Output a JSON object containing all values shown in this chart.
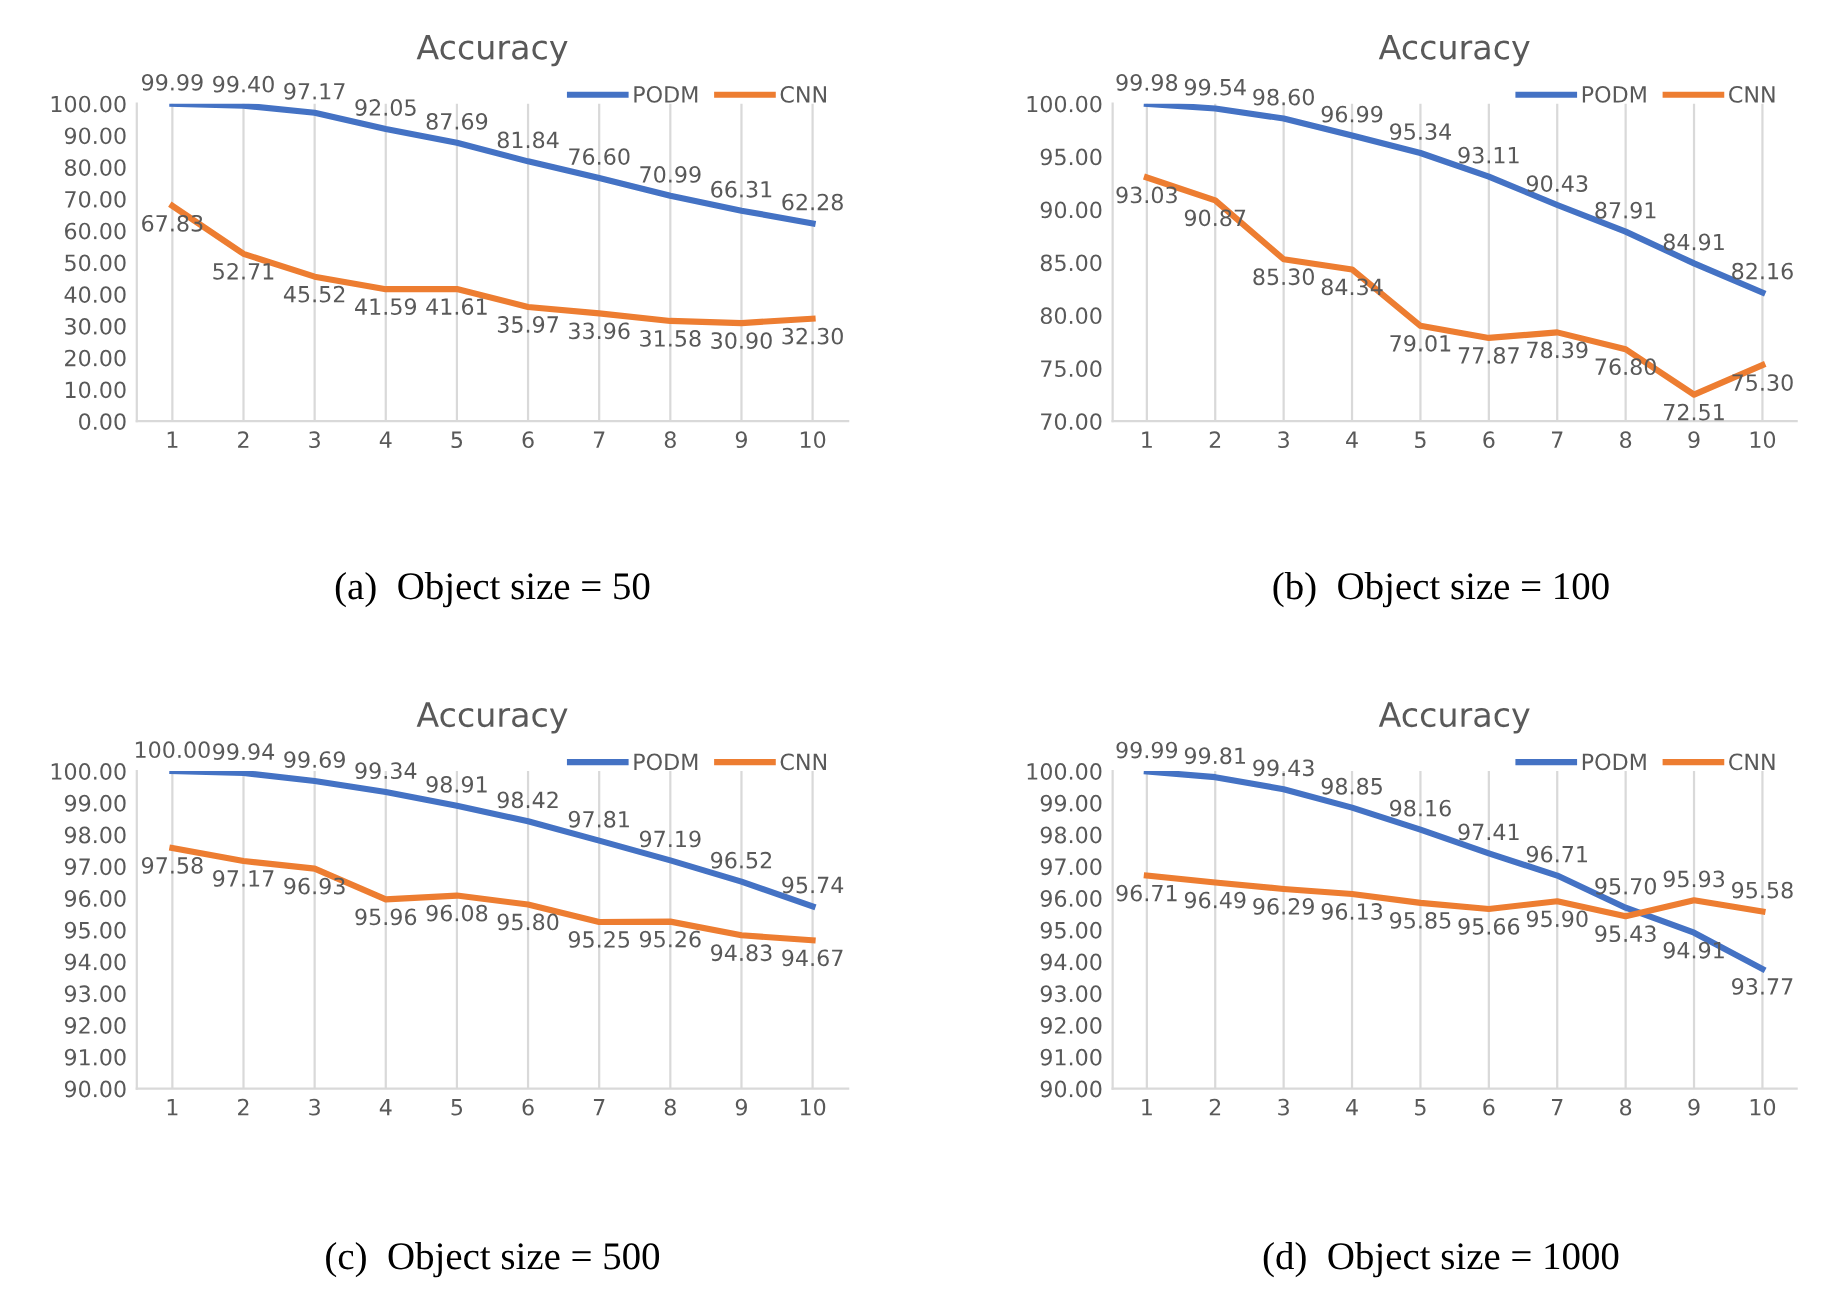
{
  "chart_data": [
    {
      "type": "line",
      "title": "Accuracy",
      "categories": [
        "1",
        "2",
        "3",
        "4",
        "5",
        "6",
        "7",
        "8",
        "9",
        "10"
      ],
      "ylim": [
        0,
        100
      ],
      "yticks": [
        {
          "value": 0,
          "label": "0.00"
        },
        {
          "value": 10,
          "label": "10.00"
        },
        {
          "value": 20,
          "label": "20.00"
        },
        {
          "value": 30,
          "label": "30.00"
        },
        {
          "value": 40,
          "label": "40.00"
        },
        {
          "value": 50,
          "label": "50.00"
        },
        {
          "value": 60,
          "label": "60.00"
        },
        {
          "value": 70,
          "label": "70.00"
        },
        {
          "value": 80,
          "label": "80.00"
        },
        {
          "value": 90,
          "label": "90.00"
        },
        {
          "value": 100,
          "label": "100.00"
        }
      ],
      "series": [
        {
          "name": "PODM",
          "color": "#4472c4",
          "values": [
            99.99,
            99.4,
            97.17,
            92.05,
            87.69,
            81.84,
            76.6,
            70.99,
            66.31,
            62.28
          ],
          "value_labels": [
            "99.99",
            "99.40",
            "97.17",
            "92.05",
            "87.69",
            "81.84",
            "76.60",
            "70.99",
            "66.31",
            "62.28"
          ]
        },
        {
          "name": "CNN",
          "color": "#ed7d31",
          "values": [
            67.83,
            52.71,
            45.52,
            41.59,
            41.61,
            35.97,
            33.96,
            31.58,
            30.9,
            32.3
          ],
          "value_labels": [
            "67.83",
            "52.71",
            "45.52",
            "41.59",
            "41.61",
            "35.97",
            "33.96",
            "31.58",
            "30.90",
            "32.30"
          ]
        }
      ],
      "grid": "x",
      "legend": "top right",
      "marker": "none",
      "line_style": "solid",
      "annotations": [
        "(a)  Object size = 50"
      ]
    },
    {
      "type": "line",
      "title": "Accuracy",
      "categories": [
        "1",
        "2",
        "3",
        "4",
        "5",
        "6",
        "7",
        "8",
        "9",
        "10"
      ],
      "ylim": [
        70,
        100
      ],
      "yticks": [
        {
          "value": 70,
          "label": "70.00"
        },
        {
          "value": 75,
          "label": "75.00"
        },
        {
          "value": 80,
          "label": "80.00"
        },
        {
          "value": 85,
          "label": "85.00"
        },
        {
          "value": 90,
          "label": "90.00"
        },
        {
          "value": 95,
          "label": "95.00"
        },
        {
          "value": 100,
          "label": "100.00"
        }
      ],
      "series": [
        {
          "name": "PODM",
          "color": "#4472c4",
          "values": [
            99.98,
            99.54,
            98.6,
            96.99,
            95.34,
            93.11,
            90.43,
            87.91,
            84.91,
            82.16
          ],
          "value_labels": [
            "99.98",
            "99.54",
            "98.60",
            "96.99",
            "95.34",
            "93.11",
            "90.43",
            "87.91",
            "84.91",
            "82.16"
          ]
        },
        {
          "name": "CNN",
          "color": "#ed7d31",
          "values": [
            93.03,
            90.87,
            85.3,
            84.34,
            79.01,
            77.87,
            78.39,
            76.8,
            72.51,
            75.3
          ],
          "value_labels": [
            "93.03",
            "90.87",
            "85.30",
            "84.34",
            "79.01",
            "77.87",
            "78.39",
            "76.80",
            "72.51",
            "75.30"
          ]
        }
      ],
      "grid": "x",
      "legend": "top right",
      "marker": "none",
      "line_style": "solid",
      "annotations": [
        "(b)  Object size = 100"
      ]
    },
    {
      "type": "line",
      "title": "Accuracy",
      "categories": [
        "1",
        "2",
        "3",
        "4",
        "5",
        "6",
        "7",
        "8",
        "9",
        "10"
      ],
      "ylim": [
        90,
        100
      ],
      "yticks": [
        {
          "value": 90,
          "label": "90.00"
        },
        {
          "value": 91,
          "label": "91.00"
        },
        {
          "value": 92,
          "label": "92.00"
        },
        {
          "value": 93,
          "label": "93.00"
        },
        {
          "value": 94,
          "label": "94.00"
        },
        {
          "value": 95,
          "label": "95.00"
        },
        {
          "value": 96,
          "label": "96.00"
        },
        {
          "value": 97,
          "label": "97.00"
        },
        {
          "value": 98,
          "label": "98.00"
        },
        {
          "value": 99,
          "label": "99.00"
        },
        {
          "value": 100,
          "label": "100.00"
        }
      ],
      "series": [
        {
          "name": "PODM",
          "color": "#4472c4",
          "values": [
            100.0,
            99.94,
            99.69,
            99.34,
            98.91,
            98.42,
            97.81,
            97.19,
            96.52,
            95.74
          ],
          "value_labels": [
            "100.00",
            "99.94",
            "99.69",
            "99.34",
            "98.91",
            "98.42",
            "97.81",
            "97.19",
            "96.52",
            "95.74"
          ]
        },
        {
          "name": "CNN",
          "color": "#ed7d31",
          "values": [
            97.58,
            97.17,
            96.93,
            95.96,
            96.08,
            95.8,
            95.25,
            95.26,
            94.83,
            94.67
          ],
          "value_labels": [
            "97.58",
            "97.17",
            "96.93",
            "95.96",
            "96.08",
            "95.80",
            "95.25",
            "95.26",
            "94.83",
            "94.67"
          ]
        }
      ],
      "grid": "x",
      "legend": "top right",
      "marker": "none",
      "line_style": "solid",
      "annotations": [
        "(c)  Object size = 500"
      ]
    },
    {
      "type": "line",
      "title": "Accuracy",
      "categories": [
        "1",
        "2",
        "3",
        "4",
        "5",
        "6",
        "7",
        "8",
        "9",
        "10"
      ],
      "ylim": [
        90,
        100
      ],
      "yticks": [
        {
          "value": 90,
          "label": "90.00"
        },
        {
          "value": 91,
          "label": "91.00"
        },
        {
          "value": 92,
          "label": "92.00"
        },
        {
          "value": 93,
          "label": "93.00"
        },
        {
          "value": 94,
          "label": "94.00"
        },
        {
          "value": 95,
          "label": "95.00"
        },
        {
          "value": 96,
          "label": "96.00"
        },
        {
          "value": 97,
          "label": "97.00"
        },
        {
          "value": 98,
          "label": "98.00"
        },
        {
          "value": 99,
          "label": "99.00"
        },
        {
          "value": 100,
          "label": "100.00"
        }
      ],
      "series": [
        {
          "name": "PODM",
          "color": "#4472c4",
          "values": [
            99.99,
            99.81,
            99.43,
            98.85,
            98.16,
            97.41,
            96.71,
            95.7,
            94.91,
            93.77
          ],
          "value_labels": [
            "99.99",
            "99.81",
            "99.43",
            "98.85",
            "98.16",
            "97.41",
            "96.71",
            "95.70",
            "94.91",
            "93.77"
          ]
        },
        {
          "name": "CNN",
          "color": "#ed7d31",
          "values": [
            96.71,
            96.49,
            96.29,
            96.13,
            95.85,
            95.66,
            95.9,
            95.43,
            95.93,
            95.58
          ],
          "value_labels": [
            "96.71",
            "96.49",
            "96.29",
            "96.13",
            "95.85",
            "95.66",
            "95.90",
            "95.43",
            "95.93",
            "95.58"
          ]
        }
      ],
      "grid": "x",
      "legend": "top right",
      "marker": "none",
      "line_style": "solid",
      "annotations": [
        "(d)  Object size = 1000"
      ]
    }
  ]
}
